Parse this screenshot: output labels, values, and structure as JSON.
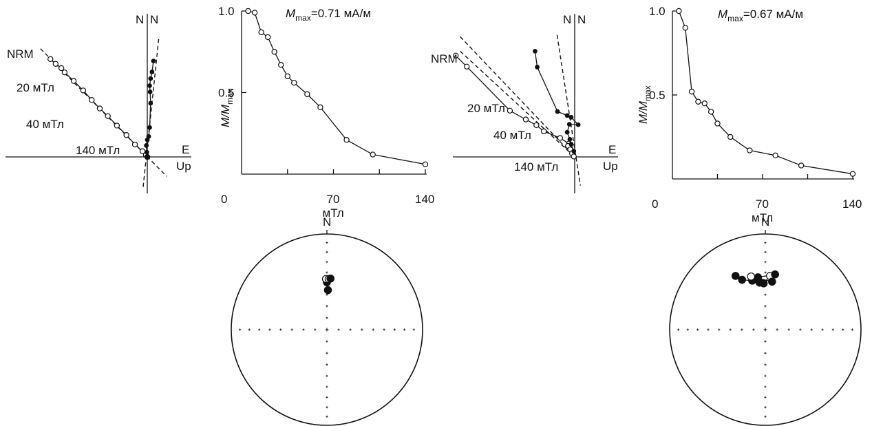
{
  "chart_data": [
    {
      "type": "zijderveld",
      "panel": "left-zijderveld",
      "axis_labels": {
        "north": "N",
        "north2": "N",
        "east": "E",
        "up": "Up"
      },
      "step_labels": [
        "NRM",
        "20 мТл",
        "40 мТл",
        "140 мТл"
      ],
      "series": [
        {
          "name": "horizontal",
          "marker": "open",
          "x": [
            -2.04,
            -1.93,
            -1.81,
            -1.74,
            -1.55,
            -1.35,
            -1.17,
            -1.0,
            -0.83,
            -0.64,
            -0.44,
            -0.26,
            -0.1,
            -0.03,
            0.0
          ],
          "y": [
            2.06,
            1.96,
            1.87,
            1.78,
            1.6,
            1.4,
            1.2,
            1.02,
            0.86,
            0.66,
            0.46,
            0.26,
            0.12,
            0.04,
            0.0
          ]
        },
        {
          "name": "vertical",
          "marker": "filled",
          "x": [
            0.13,
            0.1,
            0.07,
            0.05,
            0.06,
            0.07,
            0.05,
            0.03,
            0.0,
            -0.02,
            -0.01,
            0.0
          ],
          "y": [
            2.02,
            1.79,
            1.65,
            1.5,
            1.37,
            1.13,
            0.62,
            0.43,
            0.36,
            0.24,
            0.1,
            0.0
          ]
        }
      ],
      "fit_lines": [
        {
          "name": "horizontal-fit",
          "from": [
            -2.25,
            2.28
          ],
          "to": [
            0.41,
            -0.41
          ]
        },
        {
          "name": "vertical-fit",
          "from": [
            0.24,
            2.48
          ],
          "to": [
            -0.09,
            -0.66
          ]
        }
      ]
    },
    {
      "type": "line",
      "panel": "left-demagnetization",
      "title_prefix": "M",
      "title_subscript": "max",
      "title_value": "=0.71 мА/м",
      "ylabel_main": "M/M",
      "ylabel_subscript": "max",
      "xlabel": "мТл",
      "origin_label": "0",
      "x_ticks": [
        "70",
        "140"
      ],
      "y_ticks": [
        "1.0",
        "0.5"
      ],
      "xlim": [
        0,
        140
      ],
      "ylim": [
        0,
        1
      ],
      "x": [
        5,
        10,
        15,
        20,
        25,
        30,
        35,
        40,
        50,
        60,
        80,
        100,
        140
      ],
      "y": [
        1.0,
        0.99,
        0.87,
        0.84,
        0.75,
        0.67,
        0.6,
        0.56,
        0.49,
        0.41,
        0.21,
        0.12,
        0.06
      ]
    },
    {
      "type": "zijderveld",
      "panel": "right-zijderveld",
      "axis_labels": {
        "north": "N",
        "north2": "N",
        "east": "E",
        "up": "Up"
      },
      "step_labels": [
        "NRM",
        "20 мТл",
        "40 мТл",
        "140 мТл"
      ],
      "series": [
        {
          "name": "horizontal",
          "marker": "open",
          "x": [
            -2.7,
            -2.45,
            -1.47,
            -1.11,
            -0.87,
            -0.7,
            -0.33,
            -0.13,
            -0.15,
            -0.1,
            -0.06,
            -0.02
          ],
          "y": [
            2.3,
            2.05,
            1.05,
            0.85,
            0.72,
            0.58,
            0.43,
            0.3,
            0.25,
            0.17,
            0.08,
            0.01
          ]
        },
        {
          "name": "vertical",
          "marker": "filled",
          "x": [
            -0.9,
            -0.85,
            -0.39,
            -0.17,
            -0.08,
            0.08,
            -0.12,
            -0.17,
            -0.11,
            -0.08,
            -0.02
          ],
          "y": [
            2.4,
            2.04,
            1.03,
            0.94,
            0.9,
            0.73,
            0.74,
            0.56,
            0.4,
            0.29,
            0.13
          ]
        }
      ],
      "fit_lines": [
        {
          "name": "horizontal-fit-1",
          "from": [
            -2.6,
            2.73
          ],
          "to": [
            0.0,
            0.0
          ]
        },
        {
          "name": "horizontal-fit-2",
          "from": [
            -2.6,
            2.4
          ],
          "to": [
            0.0,
            0.0
          ]
        },
        {
          "name": "vertical-fit",
          "from": [
            -0.4,
            2.77
          ],
          "to": [
            0.13,
            -0.65
          ]
        }
      ]
    },
    {
      "type": "line",
      "panel": "right-demagnetization",
      "title_prefix": "M",
      "title_subscript": "max",
      "title_value": "=0.67 мА/м",
      "ylabel_main": "M/M",
      "ylabel_subscript": "max",
      "xlabel": "мТл",
      "origin_label": "0",
      "x_ticks": [
        "70",
        "140"
      ],
      "y_ticks": [
        "1.0",
        "0.5"
      ],
      "xlim": [
        0,
        140
      ],
      "ylim": [
        0,
        1
      ],
      "x": [
        5,
        10,
        15,
        20,
        25,
        30,
        35,
        45,
        60,
        80,
        100,
        140
      ],
      "y": [
        1.0,
        0.9,
        0.52,
        0.46,
        0.45,
        0.4,
        0.33,
        0.25,
        0.17,
        0.14,
        0.08,
        0.03
      ]
    },
    {
      "type": "stereonet",
      "panel": "left-stereonet",
      "north_label": "N",
      "points": [
        {
          "dec": 1.5,
          "inc": 56,
          "marker": "filled"
        },
        {
          "dec": 0.0,
          "inc": 49,
          "marker": "filled"
        },
        {
          "dec": 359.0,
          "inc": 46,
          "marker": "open"
        },
        {
          "dec": 2.0,
          "inc": 46,
          "marker": "open"
        },
        {
          "dec": 4.0,
          "inc": 45.5,
          "marker": "filled"
        }
      ]
    },
    {
      "type": "stereonet",
      "panel": "right-stereonet",
      "north_label": "N",
      "points": [
        {
          "dec": 331.0,
          "inc": 36,
          "marker": "filled"
        },
        {
          "dec": 335.0,
          "inc": 42,
          "marker": "filled"
        },
        {
          "dec": 345.0,
          "inc": 46,
          "marker": "filled"
        },
        {
          "dec": 353.0,
          "inc": 49,
          "marker": "filled"
        },
        {
          "dec": 358.0,
          "inc": 50,
          "marker": "filled"
        },
        {
          "dec": 5.0,
          "inc": 43,
          "marker": "open"
        },
        {
          "dec": 10.0,
          "inc": 41,
          "marker": "filled"
        },
        {
          "dec": 352.0,
          "inc": 44,
          "marker": "filled"
        },
        {
          "dec": 345.0,
          "inc": 42,
          "marker": "open"
        },
        {
          "dec": 8.0,
          "inc": 48,
          "marker": "filled"
        }
      ]
    }
  ]
}
